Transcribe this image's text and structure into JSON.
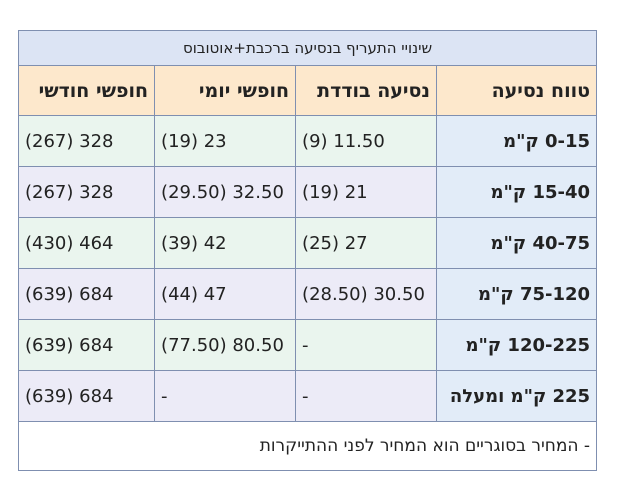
{
  "table": {
    "title": "שינויי התעריף בנסיעה ברכבת+אוטובוס",
    "headers": {
      "range": "טווח נסיעה",
      "single": "נסיעה בודדת",
      "daily": "חופשי יומי",
      "monthly": "חופשי חודשי"
    },
    "rows": [
      {
        "range": "0-15 ק\"מ",
        "single": "11.50 (9)",
        "daily": "23 (19)",
        "monthly": "328 (267)"
      },
      {
        "range": "15-40 ק\"מ",
        "single": "21 (19)",
        "daily": "32.50 (29.50)",
        "monthly": "328 (267)"
      },
      {
        "range": "40-75 ק\"מ",
        "single": "27 (25)",
        "daily": "42 (39)",
        "monthly": "464 (430)"
      },
      {
        "range": "75-120 ק\"מ",
        "single": "30.50 (28.50)",
        "daily": "47 (44)",
        "monthly": "684 (639)"
      },
      {
        "range": "120-225 ק\"מ",
        "single": "-",
        "daily": "80.50 (77.50)",
        "monthly": "684 (639)"
      },
      {
        "range": "225 ק\"מ ומעלה",
        "single": "-",
        "daily": "-",
        "monthly": "684 (639)"
      }
    ],
    "note": "- המחיר בסוגריים הוא המחיר לפני ההתייקרות"
  }
}
